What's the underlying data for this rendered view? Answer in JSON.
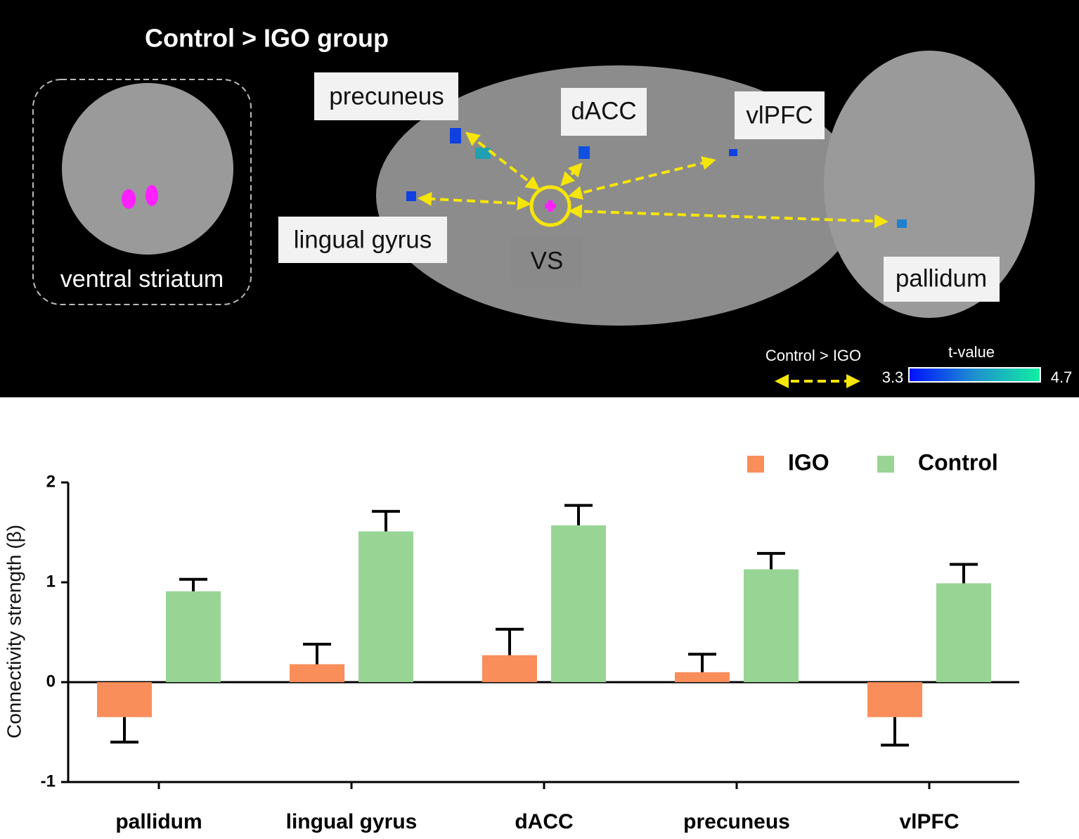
{
  "panel": {
    "title": "Control > IGO group",
    "inset_label": "ventral striatum",
    "regions": [
      "precuneus",
      "dACC",
      "vlPFC",
      "lingual gyrus",
      "VS",
      "pallidum"
    ],
    "legend_arrow": "Control > IGO",
    "colorbar": {
      "title": "t-value",
      "min": 3.3,
      "max": 4.7
    }
  },
  "chart_data": {
    "type": "bar",
    "categories": [
      "pallidum",
      "lingual gyrus",
      "dACC",
      "precuneus",
      "vlPFC"
    ],
    "series": [
      {
        "name": "IGO",
        "color": "#f98e5a",
        "values": [
          -0.35,
          0.18,
          0.27,
          0.1,
          -0.35
        ],
        "errors": [
          0.25,
          0.2,
          0.26,
          0.18,
          0.28
        ]
      },
      {
        "name": "Control",
        "color": "#98d595",
        "values": [
          0.91,
          1.51,
          1.57,
          1.13,
          0.99
        ],
        "errors": [
          0.12,
          0.2,
          0.2,
          0.16,
          0.19
        ]
      }
    ],
    "ylabel": "Connectivity strength (β)",
    "ylim": [
      -1,
      2
    ],
    "yticks": [
      -1,
      0,
      1,
      2
    ],
    "legend": "top-right"
  }
}
